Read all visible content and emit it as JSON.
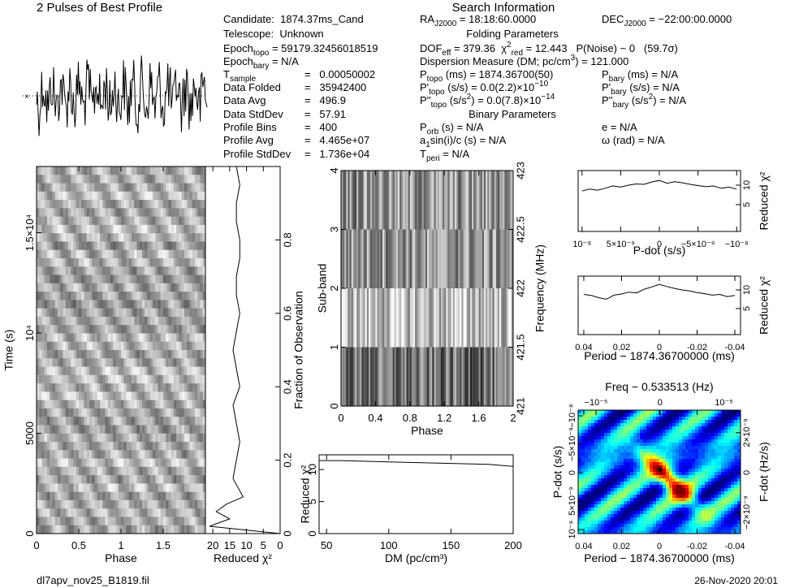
{
  "profile_title": "2 Pulses of Best Profile",
  "search_title": "Search Information",
  "info_left": [
    {
      "k": [
        {
          "t": "Candidate:  1874.37ms_Cand"
        }
      ]
    },
    {
      "k": [
        {
          "t": "Telescope:  Unknown"
        }
      ]
    },
    {
      "k": [
        {
          "t": "Epoch"
        },
        {
          "sub": "topo"
        },
        {
          "t": " = 59179.32456018519"
        }
      ]
    },
    {
      "k": [
        {
          "t": "Epoch"
        },
        {
          "sub": "bary"
        },
        {
          "t": " = N/A"
        }
      ]
    },
    {
      "k": [
        {
          "t": "T"
        },
        {
          "sub": "sample"
        }
      ],
      "v": "=   0.00050002"
    },
    {
      "k": [
        {
          "t": "Data Folded"
        }
      ],
      "v": "=   35942400"
    },
    {
      "k": [
        {
          "t": "Data Avg"
        }
      ],
      "v": "=   496.9"
    },
    {
      "k": [
        {
          "t": "Data StdDev"
        }
      ],
      "v": "=   57.91"
    },
    {
      "k": [
        {
          "t": "Profile Bins"
        }
      ],
      "v": "=   400"
    },
    {
      "k": [
        {
          "t": "Profile Avg"
        }
      ],
      "v": "=   4.465e+07"
    },
    {
      "k": [
        {
          "t": "Profile StdDev"
        }
      ],
      "v": "=   1.736e+04"
    }
  ],
  "info_right": [
    {
      "left": [
        {
          "t": "RA"
        },
        {
          "sub": "J2000"
        },
        {
          "t": " = 18:18:60.0000"
        }
      ],
      "right": [
        {
          "t": "DEC"
        },
        {
          "sub": "J2000"
        },
        {
          "t": " = −22:00:00.0000"
        }
      ]
    },
    {
      "heading": "Folding Parameters"
    },
    {
      "left": [
        {
          "t": "DOF"
        },
        {
          "sub": "eff"
        },
        {
          "t": " = 379.36  χ"
        },
        {
          "sup": "2"
        },
        {
          "sub": "red"
        },
        {
          "t": " = 12.443   P(Noise) ~ 0   (59.7σ)"
        }
      ]
    },
    {
      "left": [
        {
          "t": "Dispersion Measure (DM; pc/cm"
        },
        {
          "sup": "3"
        },
        {
          "t": ") = 121.000"
        }
      ]
    },
    {
      "left": [
        {
          "t": "P"
        },
        {
          "sub": "topo"
        },
        {
          "t": " (ms) = 1874.36700(50)"
        }
      ],
      "right": [
        {
          "t": "P"
        },
        {
          "sub": "bary"
        },
        {
          "t": " (ms) = N/A"
        }
      ]
    },
    {
      "left": [
        {
          "t": "P'"
        },
        {
          "sub": "topo"
        },
        {
          "t": " (s/s) = 0.0(2.2)×10"
        },
        {
          "sup": "−10"
        }
      ],
      "right": [
        {
          "t": "P'"
        },
        {
          "sub": "bary"
        },
        {
          "t": " (s/s) = N/A"
        }
      ]
    },
    {
      "left": [
        {
          "t": "P''"
        },
        {
          "sub": "topo"
        },
        {
          "t": " (s/s"
        },
        {
          "sup": "2"
        },
        {
          "t": ") = 0.0(7.8)×10"
        },
        {
          "sup": "−14"
        }
      ],
      "right": [
        {
          "t": "P''"
        },
        {
          "sub": "bary"
        },
        {
          "t": " (s/s"
        },
        {
          "sup": "2"
        },
        {
          "t": ") = N/A"
        }
      ]
    },
    {
      "heading": "Binary Parameters"
    },
    {
      "left": [
        {
          "t": "P"
        },
        {
          "sub": "orb"
        },
        {
          "t": " (s) = N/A"
        }
      ],
      "right": [
        {
          "t": "e = N/A"
        }
      ]
    },
    {
      "left": [
        {
          "t": "a"
        },
        {
          "sub": "1"
        },
        {
          "t": "sin(i)/c (s) = N/A"
        }
      ],
      "right": [
        {
          "t": "ω (rad) = N/A"
        }
      ]
    },
    {
      "left": [
        {
          "t": "T"
        },
        {
          "sub": "peri"
        },
        {
          "t": " = N/A"
        }
      ]
    }
  ],
  "panels": [
    {
      "xlabel": "Phase",
      "ylabel": "Time (s)",
      "xlim": [
        0,
        2
      ],
      "xticks": [
        0,
        0.5,
        1,
        1.5
      ],
      "ylim": [
        0,
        18300
      ],
      "yticks": [
        0,
        5000,
        {
          "value": 10000,
          "label": "10⁴"
        },
        {
          "value": 15000,
          "label": "1.5×10⁴"
        }
      ]
    },
    {
      "xlabel": "Reduced χ²",
      "y2label": "Fraction of Observation",
      "xlim": [
        22.2,
        0
      ],
      "xticks": [
        20,
        15,
        10,
        5,
        0
      ],
      "y2lim": [
        0,
        1
      ],
      "y2ticks": [
        0,
        0.2,
        0.4,
        0.6,
        0.8
      ],
      "curve": {
        "axis": "y2",
        "x": [
          0,
          21,
          15,
          19,
          16,
          11,
          14,
          13,
          12,
          13,
          14,
          12,
          13,
          14,
          13,
          12,
          13,
          13,
          12,
          12,
          13,
          13,
          12,
          13
        ],
        "y": [
          0,
          0.02,
          0.04,
          0.06,
          0.08,
          0.1,
          0.15,
          0.2,
          0.25,
          0.3,
          0.35,
          0.4,
          0.45,
          0.5,
          0.55,
          0.6,
          0.65,
          0.7,
          0.75,
          0.8,
          0.85,
          0.9,
          0.95,
          1
        ]
      }
    },
    {
      "xlabel": "Phase",
      "ylabel": "Sub-band",
      "y2label": "Frequency (MHz)",
      "xlim": [
        0,
        2
      ],
      "xticks": [
        0,
        0.4,
        0.8,
        1.2,
        1.6,
        2
      ],
      "ylim": [
        0,
        4
      ],
      "yticks": [
        0,
        1,
        2,
        3,
        4
      ],
      "y2lim": [
        421,
        423
      ],
      "y2ticks": [
        421,
        421.5,
        422,
        422.5,
        423
      ]
    },
    {
      "xlabel": "DM (pc/cm³)",
      "ylabel": "Reduced χ²",
      "xlim": [
        44,
        200
      ],
      "xticks": [
        50,
        100,
        150,
        200
      ],
      "ylim": [
        0,
        12.3
      ],
      "yticks": [
        0,
        5,
        10
      ],
      "curve": {
        "axis": "y",
        "x": [
          44,
          60,
          80,
          100,
          120,
          140,
          160,
          180,
          200
        ],
        "y": [
          11.4,
          11.4,
          11.3,
          11.2,
          11.1,
          11,
          10.9,
          10.8,
          10.5
        ]
      }
    },
    {
      "xlabel": "P-dot (s/s)",
      "y2label": "Reduced χ²",
      "xlim": [
        1.05e-08,
        -1.05e-08
      ],
      "xticks": [
        {
          "value": 1e-08,
          "label": "10⁻⁸"
        },
        {
          "value": 5e-09,
          "label": "5×10⁻⁹"
        },
        0,
        {
          "value": -5e-09,
          "label": "−5×10⁻⁹"
        },
        {
          "value": -1e-08,
          "label": "−10⁻⁸"
        }
      ],
      "y2lim": [
        -1.9,
        13.75
      ],
      "y2ticks": [
        5,
        10
      ],
      "curve": {
        "axis": "y2",
        "x": [
          1e-08,
          9e-09,
          8e-09,
          7e-09,
          6e-09,
          5e-09,
          4e-09,
          3e-09,
          2e-09,
          1e-09,
          0,
          -1e-09,
          -2e-09,
          -3e-09,
          -4e-09,
          -5e-09,
          -6e-09,
          -7e-09,
          -8e-09,
          -9e-09,
          -1e-08
        ],
        "y": [
          8.5,
          9,
          8.7,
          9.2,
          9.8,
          9.5,
          10,
          10.3,
          10.2,
          10.8,
          11.2,
          10.5,
          10.9,
          10.6,
          10.2,
          9.9,
          9.6,
          9.8,
          9.2,
          9.5,
          9
        ]
      }
    },
    {
      "xlabel": "Period − 1874.36700000 (ms)",
      "y2label": "Reduced χ²",
      "xlim": [
        0.043,
        -0.043
      ],
      "xticks": [
        0.04,
        0.02,
        0,
        -0.02,
        -0.04
      ],
      "y2lim": [
        -2,
        13.7
      ],
      "y2ticks": [
        5,
        10
      ],
      "curve": {
        "axis": "y2",
        "x": [
          0.04,
          0.036,
          0.032,
          0.028,
          0.024,
          0.02,
          0.016,
          0.012,
          0.008,
          0.004,
          0,
          -0.004,
          -0.008,
          -0.012,
          -0.016,
          -0.02,
          -0.024,
          -0.028,
          -0.032,
          -0.036,
          -0.04
        ],
        "y": [
          8.8,
          8.5,
          7.9,
          7.5,
          8.6,
          8.9,
          9.4,
          9.2,
          10.2,
          10.8,
          11.5,
          10.9,
          10.4,
          10,
          9.7,
          9.3,
          9,
          8.6,
          8.8,
          8.2,
          8.5
        ]
      }
    },
    {
      "title": "Freq − 0.533513 (Hz)",
      "xlabel": "Period − 1874.36700000 (ms)",
      "ylabel": "P-dot (s/s)",
      "y2label": "F-dot (Hz/s)",
      "xlim": [
        0.043,
        -0.043
      ],
      "xticks": [
        0.04,
        0.02,
        0,
        -0.02,
        -0.04
      ],
      "x2lim": [
        -1.28e-05,
        1.26e-05
      ],
      "x2ticks": [
        {
          "value": -1e-05,
          "label": "−10⁻⁵"
        },
        0,
        {
          "value": 1e-05,
          "label": "10⁻⁵"
        }
      ],
      "ylim": [
        1.07e-08,
        -1.1e-08
      ],
      "yticks": [
        {
          "value": 1e-08,
          "label": "10⁻⁸"
        },
        {
          "value": 5e-09,
          "label": "5×10⁻⁹"
        },
        0,
        {
          "value": -5e-09,
          "label": "−5×10⁻⁹"
        },
        {
          "value": -1e-08,
          "label": "−10⁻⁸"
        }
      ],
      "y2lim": [
        -3.05e-09,
        3.13e-09
      ],
      "y2ticks": [
        {
          "value": -2e-09,
          "label": "−2×10⁻⁹"
        },
        0,
        {
          "value": 2e-09,
          "label": "2×10⁻⁹"
        }
      ]
    }
  ],
  "footer_file": "dl7apv_nov25_B1819.fil",
  "footer_date": "26-Nov-2020 20:01"
}
